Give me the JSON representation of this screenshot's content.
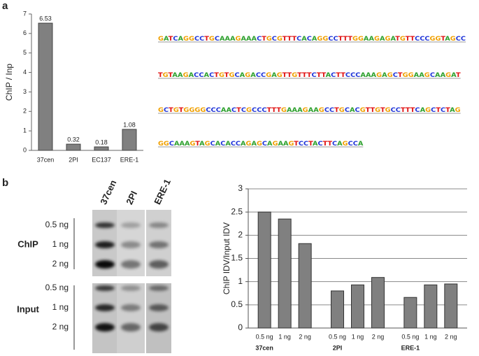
{
  "panels": {
    "a": "a",
    "b": "b"
  },
  "chart_data": [
    {
      "type": "bar",
      "y_label": "ChIP / Inp",
      "categories": [
        "37cen",
        "2PI",
        "EC137",
        "ERE-1"
      ],
      "values": [
        6.53,
        0.32,
        0.18,
        1.08
      ],
      "color": "#808080",
      "ylim": [
        0,
        7
      ],
      "yticks": [
        0,
        1,
        2,
        3,
        4,
        5,
        6,
        7
      ],
      "grid": false
    },
    {
      "type": "grouped-bar",
      "y_label": "ChIP IDV/Input IDV",
      "groups": [
        {
          "name": "37cen",
          "categories": [
            "0.5 ng",
            "1 ng",
            "2 ng"
          ],
          "values": [
            2.5,
            2.35,
            1.82
          ]
        },
        {
          "name": "2PI",
          "categories": [
            "0.5 ng",
            "1 ng",
            "2 ng"
          ],
          "values": [
            0.8,
            0.93,
            1.09
          ]
        },
        {
          "name": "ERE-1",
          "categories": [
            "0.5 ng",
            "1 ng",
            "2 ng"
          ],
          "values": [
            0.66,
            0.93,
            0.95
          ]
        }
      ],
      "color": "#808080",
      "ylim": [
        0,
        3
      ],
      "yticks": [
        0,
        0.5,
        1,
        1.5,
        2,
        2.5,
        3
      ],
      "grid": true
    }
  ],
  "logo": {
    "rows": [
      "GATCAGGCCTGCAAAGAAACTGCGTTTCACAGGCCTTTGGAAGAGATGTTCCCGGTAGCC",
      "TGTAAGACCACTGTGCAGACCGAGTTGTTTCTTACTTCCCAAAGAGCTGGAAGCAAGAT",
      "GCTGTGGGGCCCAACTCGCCCTTTGAAAGAAGCCTGCACGTTGTGCCTTTCAGCTCTAG",
      "GGCAAAGTAGCACACCAGAGCAGAAGTCCTACTTCAGCCA"
    ]
  },
  "gel": {
    "lanes": [
      "37cen",
      "2PI",
      "ERE-1"
    ],
    "sections": [
      {
        "name": "ChIP",
        "amounts": [
          "0.5 ng",
          "1 ng",
          "2 ng"
        ]
      },
      {
        "name": "Input",
        "amounts": [
          "0.5 ng",
          "1 ng",
          "2 ng"
        ]
      }
    ]
  }
}
